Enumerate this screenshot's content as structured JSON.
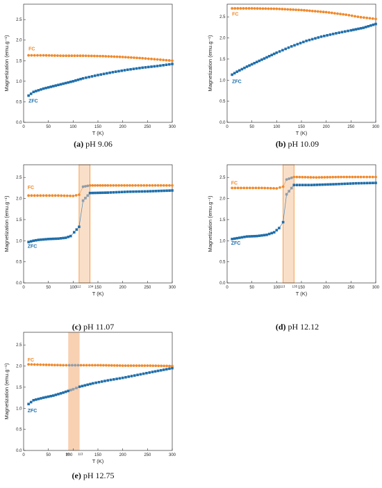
{
  "colors": {
    "fc": "#F08A2C",
    "zfc": "#1F6EAA",
    "band": "#F7C9A4",
    "band_edge": "#F08A2C",
    "connector": "#8E9CAA"
  },
  "chart_data": [
    {
      "id": "a",
      "type": "scatter",
      "caption_letter": "(a)",
      "caption_text": " pH 9.06",
      "xlabel": "T (K)",
      "ylabel": "Magnetization (emu.g⁻¹)",
      "xlim": [
        0,
        300
      ],
      "ylim": [
        0,
        2.875
      ],
      "xticks": [
        0,
        50,
        100,
        150,
        200,
        250,
        300
      ],
      "yticks": [
        0.0,
        0.5,
        1.0,
        1.5,
        2.0,
        2.5
      ],
      "ytick_labels": [
        "0.0",
        "0.5",
        "1.0",
        "1.5",
        "2.0",
        "2.5"
      ],
      "grid": false,
      "legend": "inline labels",
      "series": [
        {
          "name": "FC",
          "label_at": [
            10,
            1.75
          ],
          "points": [
            [
              10,
              1.63
            ],
            [
              40,
              1.63
            ],
            [
              80,
              1.62
            ],
            [
              120,
              1.62
            ],
            [
              160,
              1.61
            ],
            [
              200,
              1.59
            ],
            [
              240,
              1.56
            ],
            [
              270,
              1.53
            ],
            [
              300,
              1.5
            ]
          ]
        },
        {
          "name": "ZFC",
          "label_at": [
            10,
            0.48
          ],
          "points": [
            [
              10,
              0.65
            ],
            [
              20,
              0.74
            ],
            [
              40,
              0.82
            ],
            [
              60,
              0.88
            ],
            [
              80,
              0.94
            ],
            [
              100,
              1.0
            ],
            [
              120,
              1.07
            ],
            [
              150,
              1.15
            ],
            [
              180,
              1.22
            ],
            [
              210,
              1.28
            ],
            [
              240,
              1.33
            ],
            [
              270,
              1.37
            ],
            [
              300,
              1.42
            ]
          ]
        }
      ]
    },
    {
      "id": "b",
      "type": "scatter",
      "caption_letter": "(b)",
      "caption_text": " pH 10.09",
      "xlabel": "T (K)",
      "ylabel": "Magnetization (emu.g⁻¹)",
      "xlim": [
        0,
        300
      ],
      "ylim": [
        0,
        2.8
      ],
      "xticks": [
        0,
        50,
        100,
        150,
        200,
        250,
        300
      ],
      "yticks": [
        0.0,
        0.5,
        1.0,
        1.5,
        2.0,
        2.5
      ],
      "ytick_labels": [
        "0.0",
        "0.5",
        "1.0",
        "1.5",
        "2.0",
        "2.5"
      ],
      "grid": false,
      "legend": "inline labels",
      "series": [
        {
          "name": "FC",
          "label_at": [
            10,
            2.53
          ],
          "points": [
            [
              10,
              2.7
            ],
            [
              50,
              2.7
            ],
            [
              100,
              2.69
            ],
            [
              150,
              2.66
            ],
            [
              200,
              2.61
            ],
            [
              240,
              2.55
            ],
            [
              270,
              2.49
            ],
            [
              300,
              2.45
            ]
          ]
        },
        {
          "name": "ZFC",
          "label_at": [
            10,
            0.93
          ],
          "points": [
            [
              10,
              1.13
            ],
            [
              20,
              1.2
            ],
            [
              40,
              1.32
            ],
            [
              60,
              1.43
            ],
            [
              80,
              1.54
            ],
            [
              100,
              1.65
            ],
            [
              130,
              1.8
            ],
            [
              160,
              1.93
            ],
            [
              190,
              2.03
            ],
            [
              220,
              2.11
            ],
            [
              250,
              2.18
            ],
            [
              275,
              2.24
            ],
            [
              300,
              2.33
            ]
          ]
        }
      ]
    },
    {
      "id": "c",
      "type": "scatter",
      "caption_letter": "(c)",
      "caption_text": " pH 11.07",
      "xlabel": "T (K)",
      "ylabel": "Magnetization (emu.g⁻¹)",
      "xlim": [
        0,
        300
      ],
      "ylim": [
        0,
        2.8
      ],
      "xticks": [
        0,
        50,
        100,
        150,
        200,
        250,
        300
      ],
      "yticks": [
        0.0,
        0.5,
        1.0,
        1.5,
        2.0,
        2.5
      ],
      "ytick_labels": [
        "0.0",
        "0.5",
        "1.0",
        "1.5",
        "2.0",
        "2.5"
      ],
      "band": [
        112,
        134
      ],
      "band_labels": [
        "112",
        "134"
      ],
      "grid": false,
      "legend": "inline labels",
      "series": [
        {
          "name": "FC",
          "label_at": [
            8,
            2.22
          ],
          "points": [
            [
              10,
              2.07
            ],
            [
              40,
              2.07
            ],
            [
              70,
              2.07
            ],
            [
              100,
              2.06
            ],
            [
              112,
              2.09
            ],
            [
              120,
              2.28
            ],
            [
              134,
              2.31
            ],
            [
              170,
              2.31
            ],
            [
              220,
              2.31
            ],
            [
              260,
              2.31
            ],
            [
              300,
              2.31
            ]
          ]
        },
        {
          "name": "ZFC",
          "label_at": [
            8,
            0.83
          ],
          "points": [
            [
              10,
              0.97
            ],
            [
              20,
              1.0
            ],
            [
              30,
              1.02
            ],
            [
              50,
              1.04
            ],
            [
              70,
              1.05
            ],
            [
              85,
              1.07
            ],
            [
              95,
              1.11
            ],
            [
              102,
              1.2
            ],
            [
              112,
              1.33
            ],
            [
              120,
              1.95
            ],
            [
              134,
              2.13
            ],
            [
              170,
              2.14
            ],
            [
              210,
              2.16
            ],
            [
              250,
              2.17
            ],
            [
              300,
              2.19
            ]
          ]
        }
      ]
    },
    {
      "id": "d",
      "type": "scatter",
      "caption_letter": "(d)",
      "caption_text": " pH 12.12",
      "xlabel": "T (K)",
      "ylabel": "Magnetization (emu.g⁻¹)",
      "xlim": [
        0,
        300
      ],
      "ylim": [
        0,
        2.8
      ],
      "xticks": [
        0,
        50,
        100,
        150,
        200,
        250,
        300
      ],
      "yticks": [
        0.0,
        0.5,
        1.0,
        1.5,
        2.0,
        2.5
      ],
      "ytick_labels": [
        "0.0",
        "0.5",
        "1.0",
        "1.5",
        "2.0",
        "2.5"
      ],
      "band": [
        113,
        135
      ],
      "band_labels": [
        "113",
        "135"
      ],
      "grid": false,
      "legend": "inline labels",
      "series": [
        {
          "name": "FC",
          "label_at": [
            8,
            2.33
          ],
          "points": [
            [
              10,
              2.25
            ],
            [
              40,
              2.25
            ],
            [
              70,
              2.25
            ],
            [
              100,
              2.24
            ],
            [
              113,
              2.28
            ],
            [
              120,
              2.45
            ],
            [
              135,
              2.51
            ],
            [
              180,
              2.5
            ],
            [
              230,
              2.51
            ],
            [
              270,
              2.51
            ],
            [
              300,
              2.51
            ]
          ]
        },
        {
          "name": "ZFC",
          "label_at": [
            8,
            0.91
          ],
          "points": [
            [
              10,
              1.04
            ],
            [
              25,
              1.07
            ],
            [
              40,
              1.1
            ],
            [
              60,
              1.11
            ],
            [
              80,
              1.14
            ],
            [
              95,
              1.2
            ],
            [
              105,
              1.3
            ],
            [
              113,
              1.44
            ],
            [
              120,
              2.1
            ],
            [
              135,
              2.32
            ],
            [
              170,
              2.32
            ],
            [
              220,
              2.34
            ],
            [
              260,
              2.36
            ],
            [
              300,
              2.37
            ]
          ]
        }
      ]
    },
    {
      "id": "e",
      "type": "scatter",
      "caption_letter": "(e)",
      "caption_text": " pH 12.75",
      "xlabel": "T (K)",
      "ylabel": "Magnetization (emu.g⁻¹)",
      "xlim": [
        0,
        300
      ],
      "ylim": [
        0,
        2.8
      ],
      "xticks": [
        0,
        50,
        100,
        150,
        200,
        250,
        300
      ],
      "yticks": [
        0.0,
        0.5,
        1.0,
        1.5,
        2.0,
        2.5
      ],
      "ytick_labels": [
        "0.0",
        "0.5",
        "1.0",
        "1.5",
        "2.0",
        "2.5"
      ],
      "band": [
        90,
        113
      ],
      "band_labels": [
        "90",
        "113"
      ],
      "grid": false,
      "legend": "inline labels",
      "series": [
        {
          "name": "FC",
          "label_at": [
            8,
            2.11
          ],
          "points": [
            [
              10,
              2.04
            ],
            [
              40,
              2.03
            ],
            [
              80,
              2.02
            ],
            [
              110,
              2.02
            ],
            [
              150,
              2.02
            ],
            [
              200,
              2.01
            ],
            [
              250,
              2.01
            ],
            [
              300,
              2.0
            ]
          ]
        },
        {
          "name": "ZFC",
          "label_at": [
            8,
            0.91
          ],
          "points": [
            [
              10,
              1.1
            ],
            [
              20,
              1.19
            ],
            [
              40,
              1.25
            ],
            [
              60,
              1.3
            ],
            [
              80,
              1.37
            ],
            [
              100,
              1.45
            ],
            [
              113,
              1.51
            ],
            [
              140,
              1.59
            ],
            [
              170,
              1.66
            ],
            [
              200,
              1.72
            ],
            [
              230,
              1.79
            ],
            [
              260,
              1.86
            ],
            [
              300,
              1.95
            ]
          ]
        }
      ]
    }
  ]
}
